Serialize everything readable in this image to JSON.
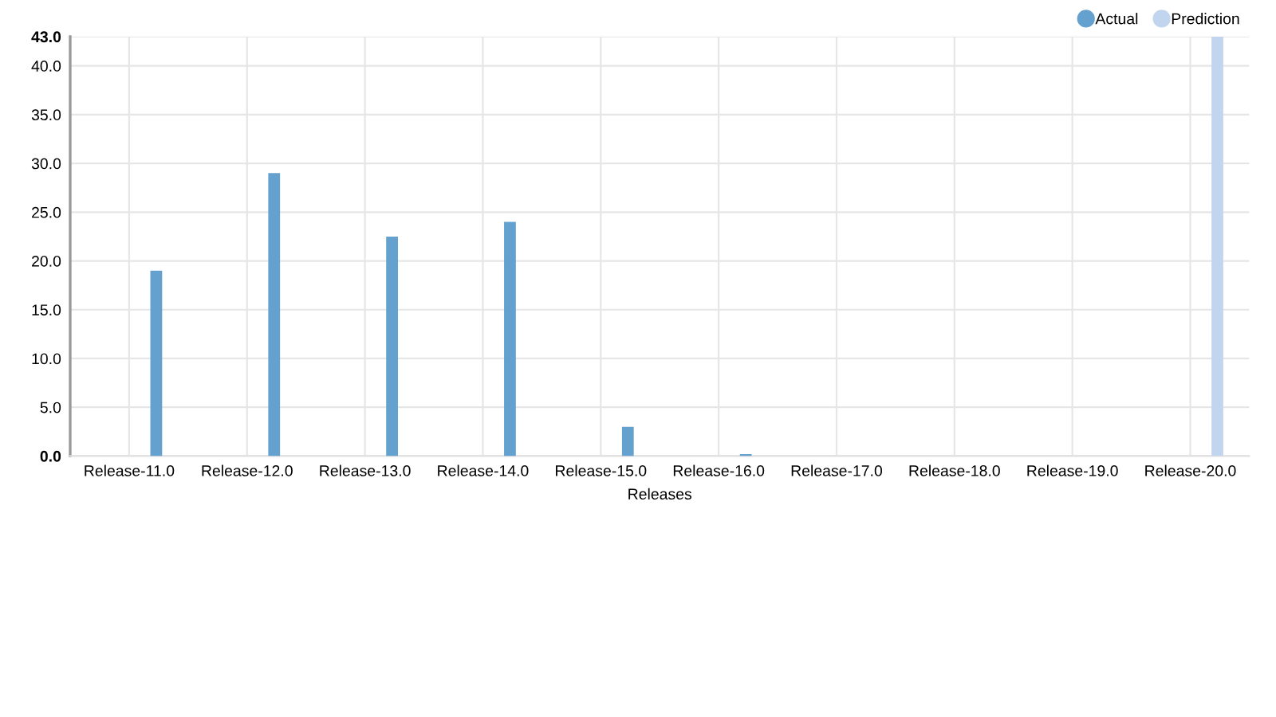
{
  "chart_data": {
    "type": "bar",
    "categories": [
      "Release-11.0",
      "Release-12.0",
      "Release-13.0",
      "Release-14.0",
      "Release-15.0",
      "Release-16.0",
      "Release-17.0",
      "Release-18.0",
      "Release-19.0",
      "Release-20.0"
    ],
    "series": [
      {
        "name": "Actual",
        "color": "#64a1cf",
        "values": [
          19,
          29,
          22.5,
          24,
          3,
          0.2,
          null,
          null,
          null,
          null
        ]
      },
      {
        "name": "Prediction",
        "color": "#c2d5ee",
        "values": [
          null,
          null,
          null,
          null,
          null,
          null,
          null,
          null,
          null,
          43
        ]
      }
    ],
    "xlabel": "Releases",
    "ylim": [
      0,
      43
    ],
    "yticks": [
      {
        "value": 0,
        "label": "0.0"
      },
      {
        "value": 5,
        "label": "5.0"
      },
      {
        "value": 10,
        "label": "10.0"
      },
      {
        "value": 15,
        "label": "15.0"
      },
      {
        "value": 20,
        "label": "20.0"
      },
      {
        "value": 25,
        "label": "25.0"
      },
      {
        "value": 30,
        "label": "30.0"
      },
      {
        "value": 35,
        "label": "35.0"
      },
      {
        "value": 40,
        "label": "40.0"
      },
      {
        "value": 43,
        "label": "43.0"
      }
    ],
    "grid": true,
    "legend": "top right"
  }
}
